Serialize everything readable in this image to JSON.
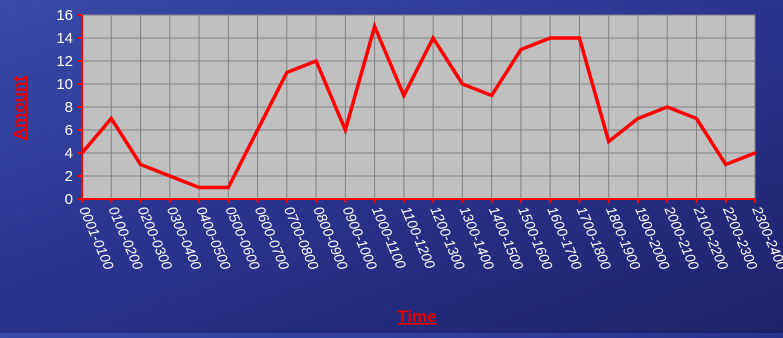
{
  "chart_data": {
    "type": "line",
    "title": "",
    "xlabel": "Time",
    "ylabel": "Amount",
    "ylim": [
      0,
      16
    ],
    "yticks": [
      0,
      2,
      4,
      6,
      8,
      10,
      12,
      14,
      16
    ],
    "grid": true,
    "legend": "none",
    "categories": [
      "0001-0100",
      "0100-0200",
      "0200-0300",
      "0300-0400",
      "0400-0500",
      "0500-0600",
      "0600-0700",
      "0700-0800",
      "0800-0900",
      "0900-1000",
      "1000-1100",
      "1100-1200",
      "1200-1300",
      "1300-1400",
      "1400-1500",
      "1500-1600",
      "1600-1700",
      "1700-1800",
      "1800-1900",
      "1900-2000",
      "2000-2100",
      "2100-2200",
      "2200-2300",
      "2300-2400"
    ],
    "series": [
      {
        "values": [
          4,
          7,
          3,
          2,
          1,
          1,
          6,
          11,
          12,
          6,
          15,
          9,
          14,
          10,
          9,
          13,
          14,
          14,
          5,
          7,
          8,
          7,
          3,
          4
        ],
        "color": "#ff0000"
      }
    ],
    "colors": {
      "plot_background": "#c0c0c0",
      "gridline": "#808080",
      "axis": "#ff0000",
      "tick_text": "#ffffff",
      "axis_title": "#e00000"
    }
  }
}
